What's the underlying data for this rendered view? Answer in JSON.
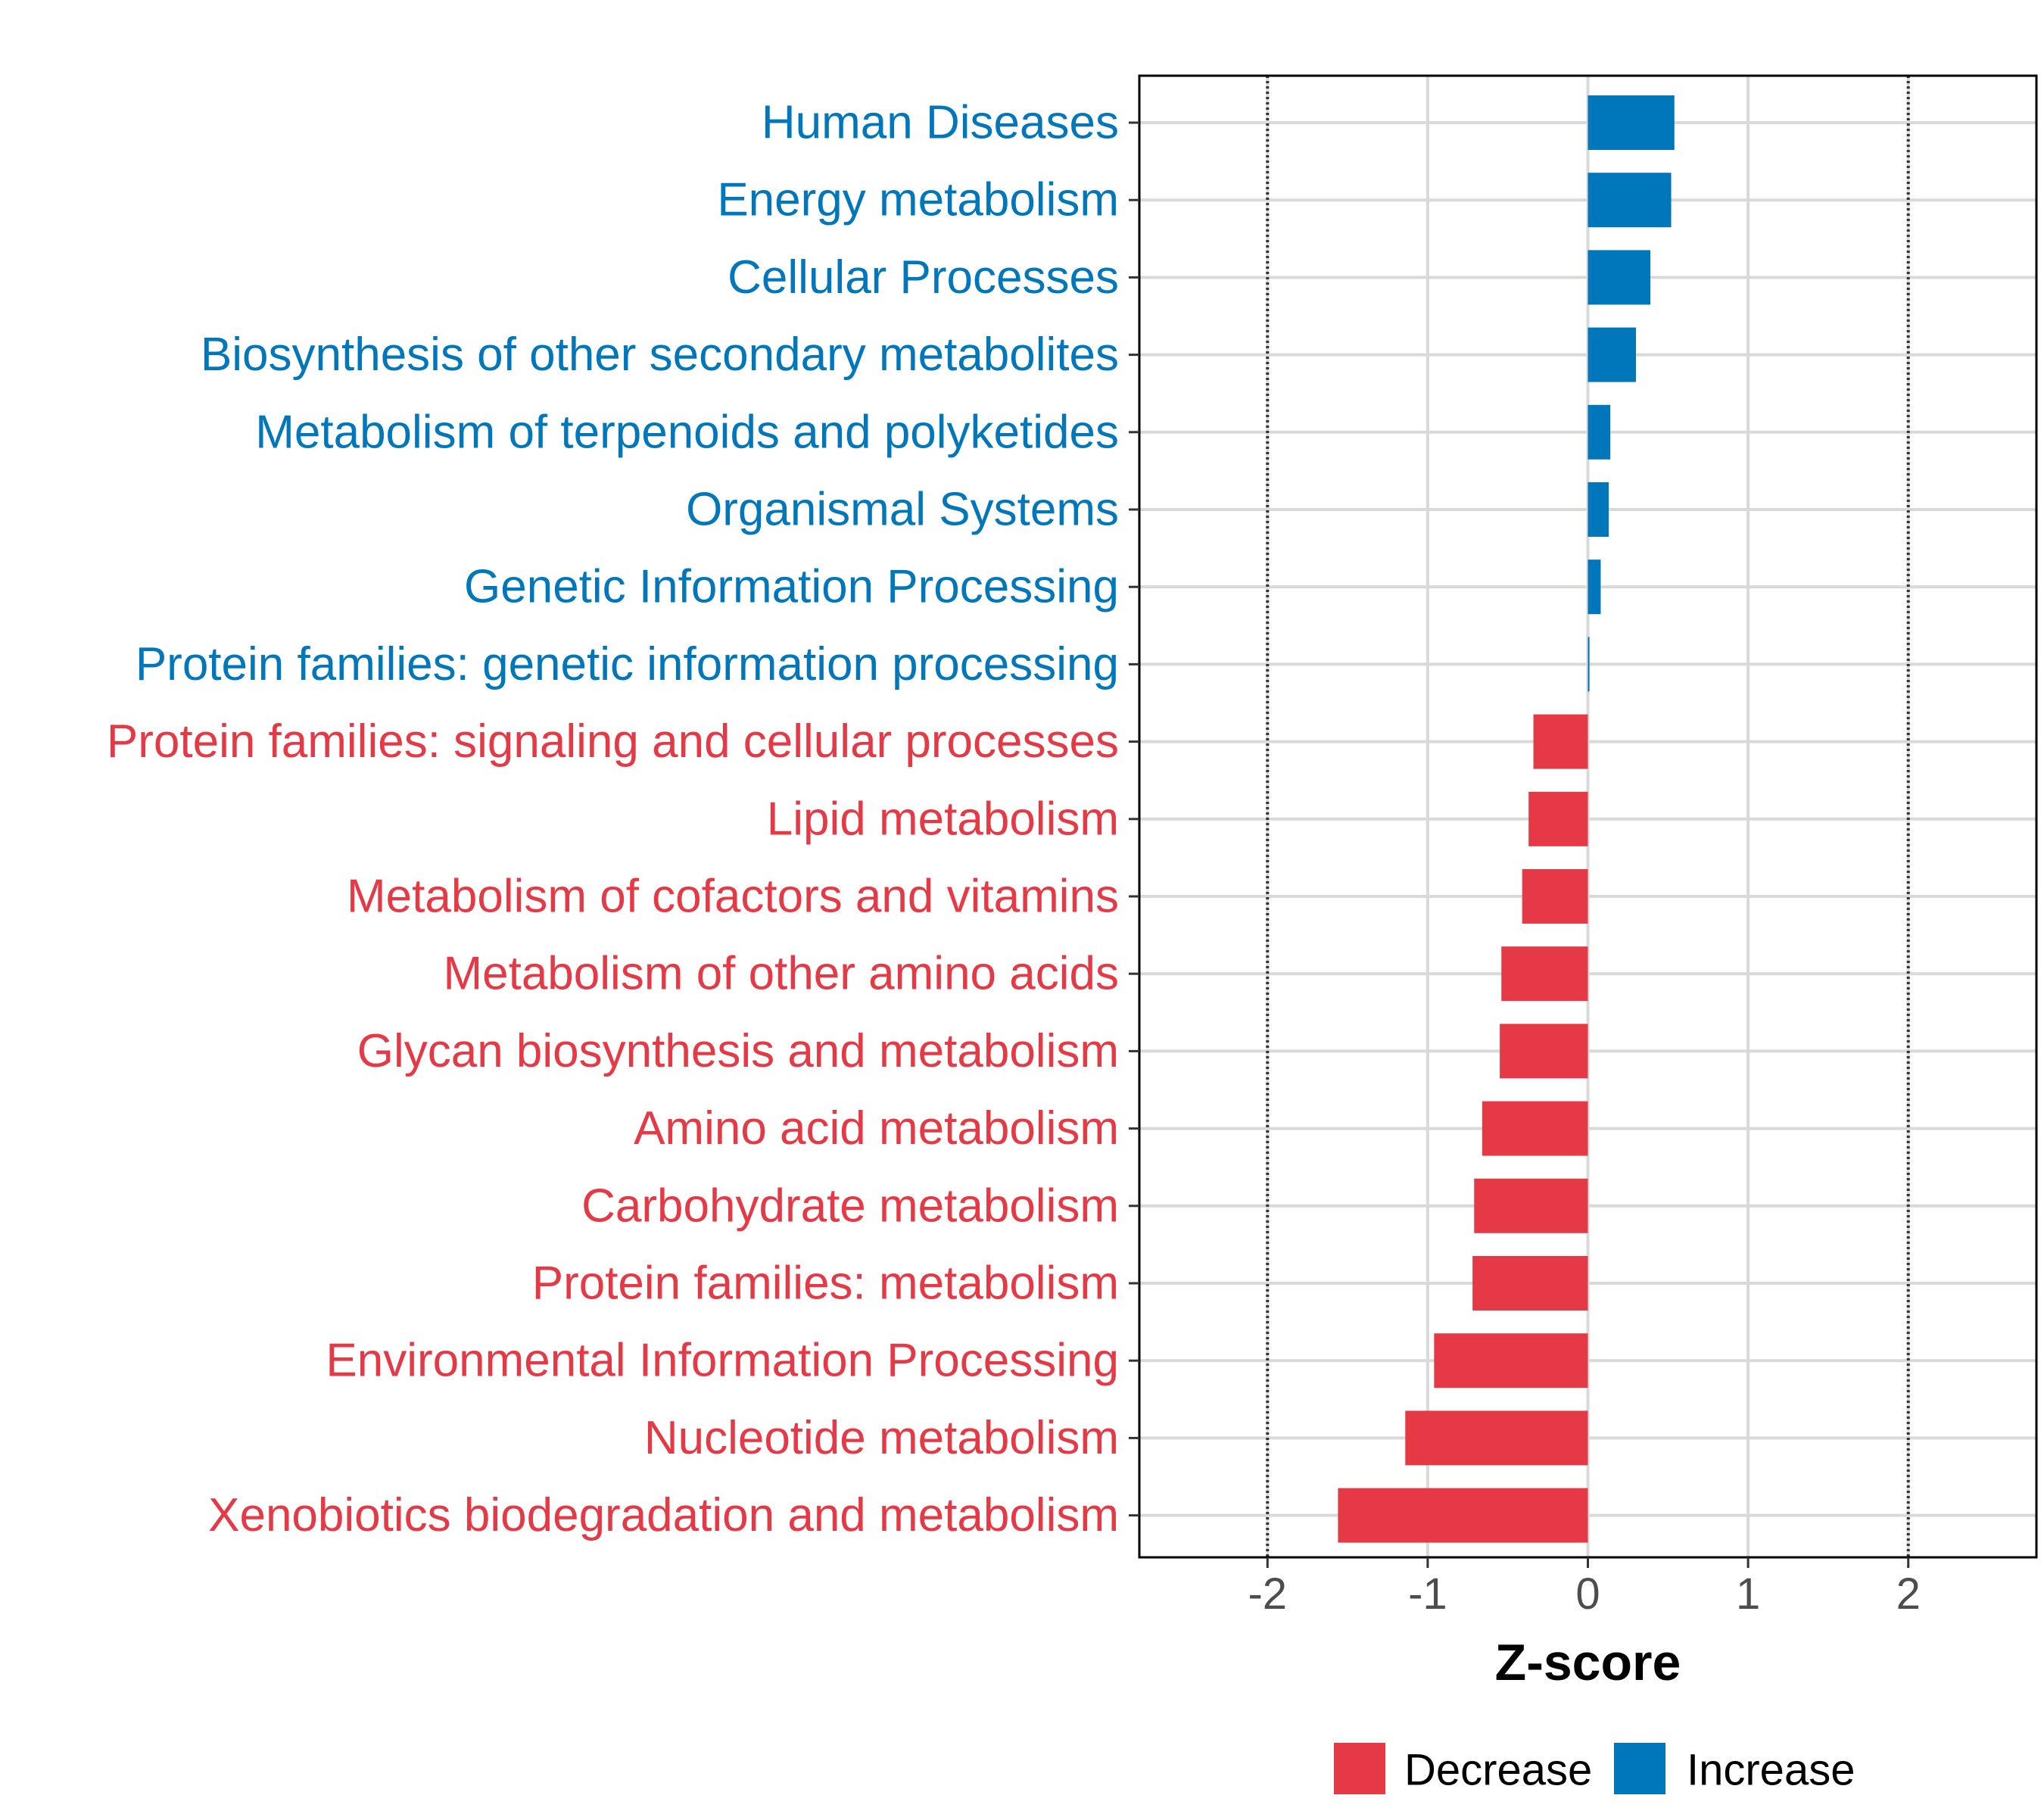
{
  "chart_data": {
    "type": "bar",
    "orientation": "horizontal",
    "xlabel": "Z-score",
    "xlim": [
      -2.8,
      2.8
    ],
    "x_ticks": [
      -2,
      -1,
      0,
      1,
      2
    ],
    "x_tick_labels": [
      "-2",
      "-1",
      "0",
      "1",
      "2"
    ],
    "reference_lines": [
      -2,
      2
    ],
    "grid": true,
    "legend": {
      "position": "bottom",
      "entries": [
        {
          "label": "Decrease",
          "color": "#e63946"
        },
        {
          "label": "Increase",
          "color": "#0077bb"
        }
      ]
    },
    "categories": [
      "Human Diseases",
      "Energy metabolism",
      "Cellular Processes",
      "Biosynthesis of other secondary metabolites",
      "Metabolism of terpenoids and polyketides",
      "Organismal Systems",
      "Genetic Information Processing",
      "Protein families: genetic information processing",
      "Protein families: signaling and cellular processes",
      "Lipid metabolism",
      "Metabolism of cofactors and vitamins",
      "Metabolism of other amino acids",
      "Glycan biosynthesis and metabolism",
      "Amino acid metabolism",
      "Carbohydrate metabolism",
      "Protein families: metabolism",
      "Environmental Information Processing",
      "Nucleotide metabolism",
      "Xenobiotics biodegradation and metabolism"
    ],
    "values": [
      0.54,
      0.52,
      0.39,
      0.3,
      0.14,
      0.13,
      0.08,
      0.01,
      -0.34,
      -0.37,
      -0.41,
      -0.54,
      -0.55,
      -0.66,
      -0.71,
      -0.72,
      -0.96,
      -1.14,
      -1.56
    ],
    "groups": [
      "Increase",
      "Increase",
      "Increase",
      "Increase",
      "Increase",
      "Increase",
      "Increase",
      "Increase",
      "Decrease",
      "Decrease",
      "Decrease",
      "Decrease",
      "Decrease",
      "Decrease",
      "Decrease",
      "Decrease",
      "Decrease",
      "Decrease",
      "Decrease"
    ]
  }
}
